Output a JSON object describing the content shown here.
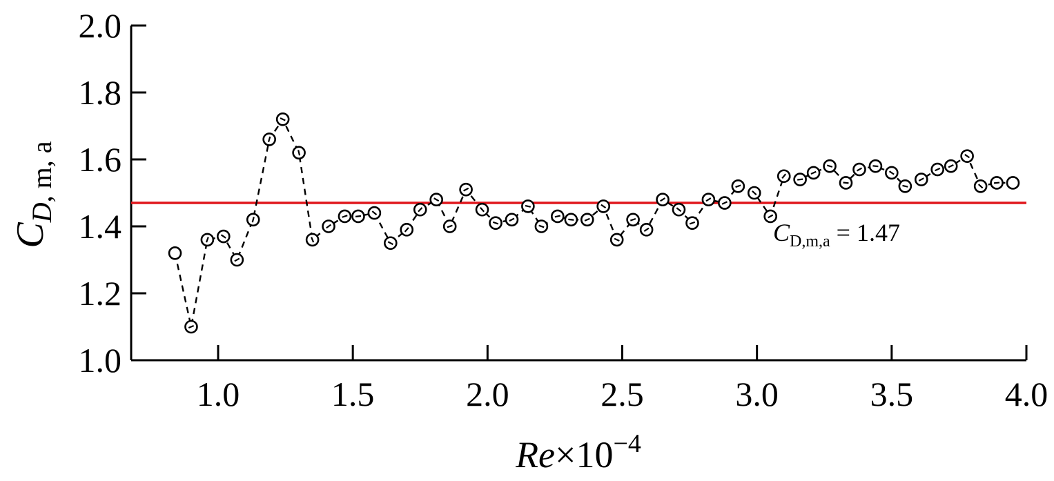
{
  "chart_data": {
    "type": "line",
    "xlabel": {
      "base": "Re",
      "times": "×10",
      "exponent": "−4"
    },
    "ylabel": {
      "main": "C",
      "subscript": "D",
      "suffix": ", m, a"
    },
    "xlim": [
      0.69,
      4.0
    ],
    "ylim": [
      1.0,
      2.0
    ],
    "x_ticks": [
      "1.0",
      "1.5",
      "2.0",
      "2.5",
      "3.0",
      "3.5",
      "4.0"
    ],
    "y_ticks": [
      "1.0",
      "1.2",
      "1.4",
      "1.6",
      "1.8",
      "2.0"
    ],
    "grid": false,
    "series": [
      {
        "style": "dashed-line-with-open-circles",
        "color": "#000000",
        "x": [
          0.84,
          0.9,
          0.96,
          1.02,
          1.07,
          1.13,
          1.19,
          1.24,
          1.3,
          1.35,
          1.41,
          1.47,
          1.52,
          1.58,
          1.64,
          1.7,
          1.75,
          1.81,
          1.86,
          1.92,
          1.98,
          2.03,
          2.09,
          2.15,
          2.2,
          2.26,
          2.31,
          2.37,
          2.43,
          2.48,
          2.54,
          2.59,
          2.65,
          2.71,
          2.76,
          2.82,
          2.88,
          2.93,
          2.99,
          3.05,
          3.1,
          3.16,
          3.21,
          3.27,
          3.33,
          3.38,
          3.44,
          3.5,
          3.55,
          3.61,
          3.67,
          3.72,
          3.78,
          3.83,
          3.89,
          3.95
        ],
        "y": [
          1.32,
          1.1,
          1.36,
          1.37,
          1.3,
          1.42,
          1.66,
          1.72,
          1.62,
          1.36,
          1.4,
          1.43,
          1.43,
          1.44,
          1.35,
          1.39,
          1.45,
          1.48,
          1.4,
          1.51,
          1.45,
          1.41,
          1.42,
          1.46,
          1.4,
          1.43,
          1.42,
          1.42,
          1.46,
          1.36,
          1.42,
          1.39,
          1.48,
          1.45,
          1.41,
          1.48,
          1.47,
          1.52,
          1.5,
          1.43,
          1.55,
          1.54,
          1.56,
          1.58,
          1.53,
          1.57,
          1.58,
          1.56,
          1.52,
          1.54,
          1.57,
          1.58,
          1.61,
          1.52,
          1.53,
          1.53
        ]
      }
    ],
    "reference_line": {
      "y": 1.47,
      "color": "#e0161c",
      "label": {
        "main": "C",
        "subscript": "D,m,a",
        "value": " = 1.47"
      }
    }
  }
}
